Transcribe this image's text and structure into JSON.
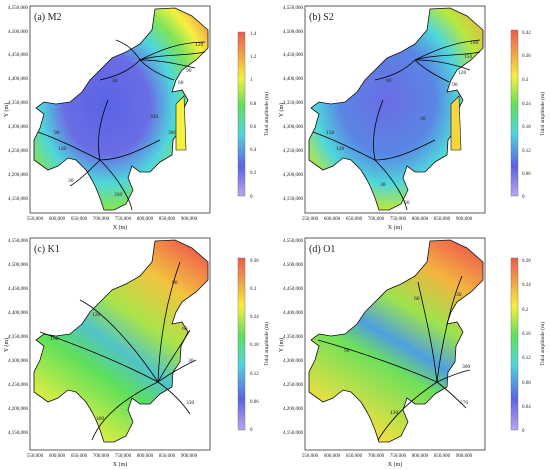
{
  "chart_data": [
    {
      "type": "heatmap",
      "panel_label": "(a) M2",
      "xlabel": "X (m)",
      "ylabel": "Y (m)",
      "colorbar_label": "Tidal amplitude (m)",
      "x_ticks": [
        "550,000",
        "600,000",
        "650,000",
        "700,000",
        "750,000",
        "800,000",
        "850,000",
        "900,000"
      ],
      "y_ticks": [
        "4,550,000",
        "4,500,000",
        "4,450,000",
        "4,400,000",
        "4,350,000",
        "4,300,000",
        "4,250,000",
        "4,200,000",
        "4,150,000"
      ],
      "colorbar_ticks": [
        "1.4",
        "1.2",
        "1",
        "0.8",
        "0.6",
        "0.4",
        "0.2",
        "0"
      ],
      "colorbar_range": [
        0,
        1.4
      ],
      "phase_labels": [
        "120",
        "90",
        "60",
        "30",
        "330",
        "300",
        "90",
        "120",
        "30",
        "330"
      ]
    },
    {
      "type": "heatmap",
      "panel_label": "(b) S2",
      "xlabel": "X (m)",
      "ylabel": "Y (m)",
      "colorbar_label": "Tidal amplitude (m)",
      "x_ticks": [
        "550,000",
        "600,000",
        "650,000",
        "700,000",
        "750,000",
        "800,000",
        "850,000",
        "900,000"
      ],
      "y_ticks": [
        "4,550,000",
        "4,500,000",
        "4,450,000",
        "4,400,000",
        "4,350,000",
        "4,300,000",
        "4,250,000",
        "4,200,000",
        "4,150,000"
      ],
      "colorbar_ticks": [
        "0.42",
        "0.36",
        "0.3",
        "0.24",
        "0.18",
        "0.12",
        "0.06",
        "0"
      ],
      "colorbar_range": [
        0,
        0.42
      ],
      "phase_labels": [
        "180",
        "150",
        "120",
        "90",
        "60",
        "30",
        "150",
        "120",
        "30",
        "30"
      ]
    },
    {
      "type": "heatmap",
      "panel_label": "(c) K1",
      "xlabel": "X (m)",
      "ylabel": "Y (m)",
      "colorbar_label": "Tidal amplitude (m)",
      "x_ticks": [
        "550,000",
        "600,000",
        "650,000",
        "700,000",
        "750,000",
        "800,000",
        "850,000",
        "900,000"
      ],
      "y_ticks": [
        "4,550,000",
        "4,500,000",
        "4,450,000",
        "4,400,000",
        "4,350,000",
        "4,300,000",
        "4,250,000",
        "4,200,000",
        "4,150,000"
      ],
      "colorbar_ticks": [
        "0.36",
        "0.3",
        "0.24",
        "0.18",
        "0.12",
        "0.06",
        "0"
      ],
      "colorbar_range": [
        0,
        0.36
      ],
      "phase_labels": [
        "90",
        "120",
        "150",
        "180",
        "60",
        "30",
        "330"
      ]
    },
    {
      "type": "heatmap",
      "panel_label": "(d) O1",
      "xlabel": "X (m)",
      "ylabel": "Y (m)",
      "colorbar_label": "Tidal amplitude (m)",
      "x_ticks": [
        "550,000",
        "600,000",
        "650,000",
        "700,000",
        "750,000",
        "800,000",
        "850,000",
        "900,000"
      ],
      "y_ticks": [
        "4,550,000",
        "4,500,000",
        "4,450,000",
        "4,400,000",
        "4,350,000",
        "4,300,000",
        "4,250,000",
        "4,200,000",
        "4,150,000"
      ],
      "colorbar_ticks": [
        "0.28",
        "0.24",
        "0.2",
        "0.16",
        "0.12",
        "0.08",
        "0.04",
        "0"
      ],
      "colorbar_range": [
        0,
        0.28
      ],
      "phase_labels": [
        "60",
        "30",
        "90",
        "120",
        "300",
        "270"
      ]
    }
  ],
  "colors": {
    "scale_low": "#9b7fe0",
    "scale_blue": "#4f5ee0",
    "scale_cyan": "#4fd6dc",
    "scale_green": "#5fe05a",
    "scale_yellow": "#f6f040",
    "scale_orange": "#f2a246",
    "scale_high": "#ee5a4c",
    "land": "#ffffff",
    "coast": "#1a1a1a"
  }
}
